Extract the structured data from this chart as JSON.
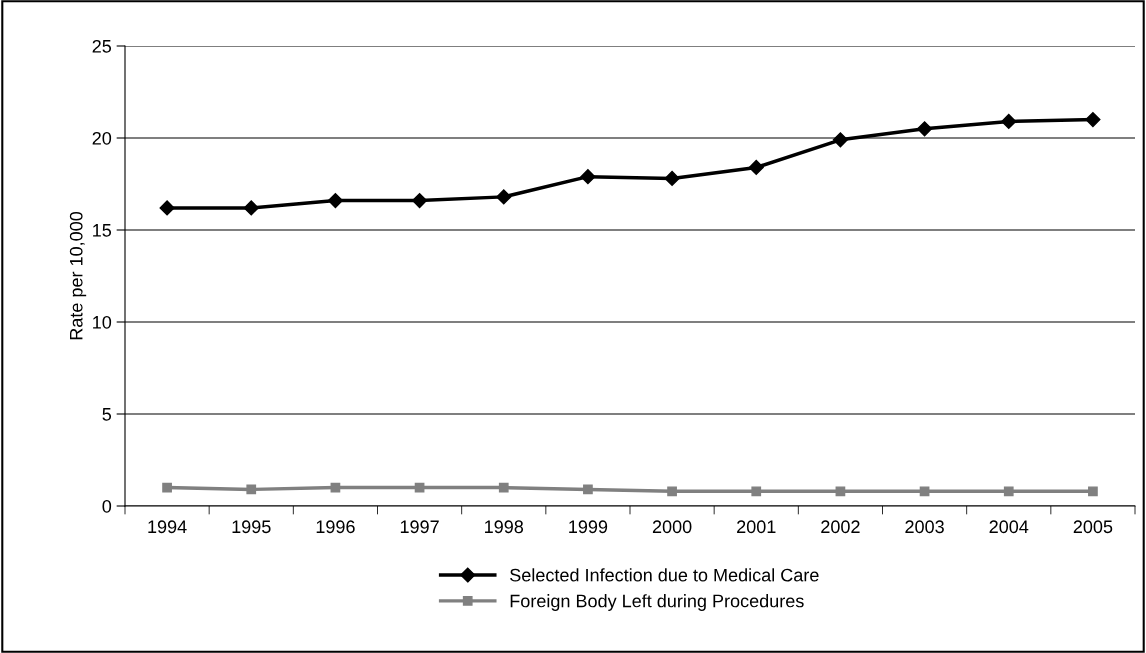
{
  "chart_data": {
    "type": "line",
    "ylabel": "Rate per 10,000",
    "categories": [
      "1994",
      "1995",
      "1996",
      "1997",
      "1998",
      "1999",
      "2000",
      "2001",
      "2002",
      "2003",
      "2004",
      "2005"
    ],
    "series": [
      {
        "name": "Selected Infection due to Medical Care",
        "color": "#000000",
        "marker": "diamond",
        "values": [
          16.2,
          16.2,
          16.6,
          16.6,
          16.8,
          17.9,
          17.8,
          18.4,
          19.9,
          20.5,
          20.9,
          21.0
        ]
      },
      {
        "name": "Foreign Body Left during Procedures",
        "color": "#808080",
        "marker": "square",
        "values": [
          1.0,
          0.9,
          1.0,
          1.0,
          1.0,
          0.9,
          0.8,
          0.8,
          0.8,
          0.8,
          0.8,
          0.8
        ]
      }
    ],
    "ylim": [
      0,
      25
    ],
    "yticks": [
      0,
      5,
      10,
      15,
      20,
      25
    ],
    "grid": "y",
    "legend": "bottom",
    "line_style": "solid"
  }
}
